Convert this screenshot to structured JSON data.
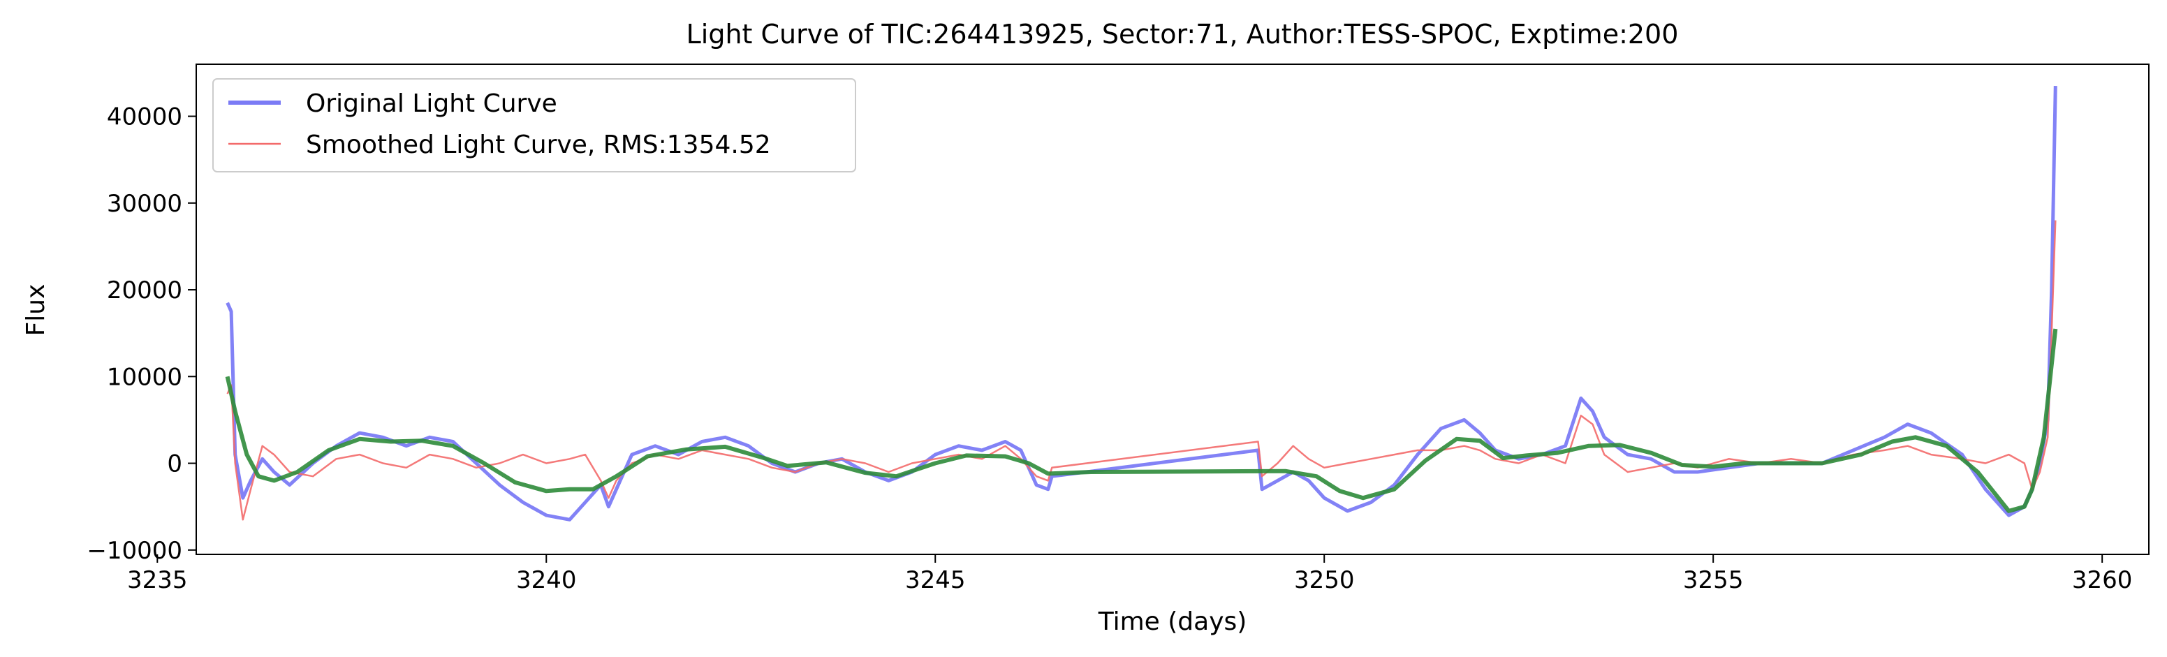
{
  "chart_data": {
    "type": "line",
    "title": "Light Curve of TIC:264413925, Sector:71, Author:TESS-SPOC, Exptime:200",
    "xlabel": "Time (days)",
    "ylabel": "Flux",
    "xlim": [
      3235.5,
      3260.6
    ],
    "ylim": [
      -10500,
      46000
    ],
    "xticks": [
      3235,
      3240,
      3245,
      3250,
      3255,
      3260
    ],
    "xtick_labels": [
      "3235",
      "3240",
      "3245",
      "3250",
      "3255",
      "3260"
    ],
    "yticks": [
      -10000,
      0,
      10000,
      20000,
      30000,
      40000
    ],
    "ytick_labels": [
      "−10000",
      "0",
      "10000",
      "20000",
      "30000",
      "40000"
    ],
    "grid": false,
    "legend_position": "top-left",
    "series": [
      {
        "name": "Original Light Curve",
        "color": "#7b7bf5",
        "points": [
          [
            3235.9,
            18500
          ],
          [
            3235.95,
            17500
          ],
          [
            3236.0,
            1000
          ],
          [
            3236.1,
            -4000
          ],
          [
            3236.2,
            -2000
          ],
          [
            3236.35,
            500
          ],
          [
            3236.5,
            -1000
          ],
          [
            3236.7,
            -2500
          ],
          [
            3237.0,
            0
          ],
          [
            3237.3,
            2000
          ],
          [
            3237.6,
            3500
          ],
          [
            3237.9,
            3000
          ],
          [
            3238.2,
            2000
          ],
          [
            3238.5,
            3000
          ],
          [
            3238.8,
            2500
          ],
          [
            3239.1,
            0
          ],
          [
            3239.4,
            -2500
          ],
          [
            3239.7,
            -4500
          ],
          [
            3240.0,
            -6000
          ],
          [
            3240.3,
            -6500
          ],
          [
            3240.5,
            -4500
          ],
          [
            3240.7,
            -2500
          ],
          [
            3240.8,
            -5000
          ],
          [
            3240.9,
            -3000
          ],
          [
            3241.1,
            1000
          ],
          [
            3241.4,
            2000
          ],
          [
            3241.7,
            1000
          ],
          [
            3242.0,
            2500
          ],
          [
            3242.3,
            3000
          ],
          [
            3242.6,
            2000
          ],
          [
            3242.9,
            0
          ],
          [
            3243.2,
            -1000
          ],
          [
            3243.5,
            0
          ],
          [
            3243.8,
            500
          ],
          [
            3244.1,
            -1000
          ],
          [
            3244.4,
            -2000
          ],
          [
            3244.7,
            -1000
          ],
          [
            3245.0,
            1000
          ],
          [
            3245.3,
            2000
          ],
          [
            3245.6,
            1500
          ],
          [
            3245.9,
            2500
          ],
          [
            3246.1,
            1500
          ],
          [
            3246.3,
            -2500
          ],
          [
            3246.45,
            -3000
          ],
          [
            3246.5,
            -1500
          ],
          [
            3249.15,
            1500
          ],
          [
            3249.2,
            -3000
          ],
          [
            3249.4,
            -2000
          ],
          [
            3249.6,
            -1000
          ],
          [
            3249.8,
            -2000
          ],
          [
            3250.0,
            -4000
          ],
          [
            3250.3,
            -5500
          ],
          [
            3250.6,
            -4500
          ],
          [
            3250.9,
            -2500
          ],
          [
            3251.2,
            1000
          ],
          [
            3251.5,
            4000
          ],
          [
            3251.8,
            5000
          ],
          [
            3252.0,
            3500
          ],
          [
            3252.2,
            1500
          ],
          [
            3252.5,
            500
          ],
          [
            3252.8,
            1000
          ],
          [
            3253.1,
            2000
          ],
          [
            3253.3,
            7500
          ],
          [
            3253.45,
            6000
          ],
          [
            3253.6,
            3000
          ],
          [
            3253.9,
            1000
          ],
          [
            3254.2,
            500
          ],
          [
            3254.5,
            -1000
          ],
          [
            3254.8,
            -1000
          ],
          [
            3255.2,
            -500
          ],
          [
            3255.6,
            0
          ],
          [
            3256.0,
            0
          ],
          [
            3256.4,
            0
          ],
          [
            3256.8,
            1500
          ],
          [
            3257.2,
            3000
          ],
          [
            3257.5,
            4500
          ],
          [
            3257.8,
            3500
          ],
          [
            3258.2,
            1000
          ],
          [
            3258.5,
            -3000
          ],
          [
            3258.8,
            -6000
          ],
          [
            3259.0,
            -5000
          ],
          [
            3259.1,
            -3000
          ],
          [
            3259.2,
            0
          ],
          [
            3259.3,
            5000
          ],
          [
            3259.35,
            20000
          ],
          [
            3259.4,
            43500
          ]
        ]
      },
      {
        "name": "Smoothed Light Curve, RMS:1354.52",
        "color": "#f36a6a",
        "points": [
          [
            3235.9,
            8000
          ],
          [
            3235.95,
            9000
          ],
          [
            3236.0,
            0
          ],
          [
            3236.1,
            -6500
          ],
          [
            3236.2,
            -3000
          ],
          [
            3236.35,
            2000
          ],
          [
            3236.5,
            1000
          ],
          [
            3236.7,
            -1000
          ],
          [
            3237.0,
            -1500
          ],
          [
            3237.3,
            500
          ],
          [
            3237.6,
            1000
          ],
          [
            3237.9,
            0
          ],
          [
            3238.2,
            -500
          ],
          [
            3238.5,
            1000
          ],
          [
            3238.8,
            500
          ],
          [
            3239.1,
            -500
          ],
          [
            3239.4,
            0
          ],
          [
            3239.7,
            1000
          ],
          [
            3240.0,
            0
          ],
          [
            3240.3,
            500
          ],
          [
            3240.5,
            1000
          ],
          [
            3240.7,
            -2000
          ],
          [
            3240.8,
            -4000
          ],
          [
            3240.9,
            -2000
          ],
          [
            3241.1,
            0
          ],
          [
            3241.4,
            1000
          ],
          [
            3241.7,
            500
          ],
          [
            3242.0,
            1500
          ],
          [
            3242.3,
            1000
          ],
          [
            3242.6,
            500
          ],
          [
            3242.9,
            -500
          ],
          [
            3243.2,
            -1000
          ],
          [
            3243.5,
            0
          ],
          [
            3243.8,
            500
          ],
          [
            3244.1,
            0
          ],
          [
            3244.4,
            -1000
          ],
          [
            3244.7,
            0
          ],
          [
            3245.0,
            500
          ],
          [
            3245.3,
            1000
          ],
          [
            3245.6,
            500
          ],
          [
            3245.9,
            2000
          ],
          [
            3246.1,
            500
          ],
          [
            3246.3,
            -1500
          ],
          [
            3246.45,
            -2000
          ],
          [
            3246.5,
            -500
          ],
          [
            3249.15,
            2500
          ],
          [
            3249.2,
            -1500
          ],
          [
            3249.4,
            0
          ],
          [
            3249.6,
            2000
          ],
          [
            3249.8,
            500
          ],
          [
            3250.0,
            -500
          ],
          [
            3250.3,
            0
          ],
          [
            3250.6,
            500
          ],
          [
            3250.9,
            1000
          ],
          [
            3251.2,
            1500
          ],
          [
            3251.5,
            1500
          ],
          [
            3251.8,
            2000
          ],
          [
            3252.0,
            1500
          ],
          [
            3252.2,
            500
          ],
          [
            3252.5,
            0
          ],
          [
            3252.8,
            1000
          ],
          [
            3253.1,
            0
          ],
          [
            3253.3,
            5500
          ],
          [
            3253.45,
            4500
          ],
          [
            3253.6,
            1000
          ],
          [
            3253.9,
            -1000
          ],
          [
            3254.2,
            -500
          ],
          [
            3254.5,
            0
          ],
          [
            3254.8,
            -500
          ],
          [
            3255.2,
            500
          ],
          [
            3255.6,
            0
          ],
          [
            3256.0,
            500
          ],
          [
            3256.4,
            0
          ],
          [
            3256.8,
            1000
          ],
          [
            3257.2,
            1500
          ],
          [
            3257.5,
            2000
          ],
          [
            3257.8,
            1000
          ],
          [
            3258.2,
            500
          ],
          [
            3258.5,
            0
          ],
          [
            3258.8,
            1000
          ],
          [
            3259.0,
            0
          ],
          [
            3259.1,
            -3000
          ],
          [
            3259.2,
            -1000
          ],
          [
            3259.3,
            3000
          ],
          [
            3259.35,
            15000
          ],
          [
            3259.4,
            28000
          ]
        ]
      },
      {
        "color": "#2e8b3a",
        "points": [
          [
            3235.9,
            10000
          ],
          [
            3236.0,
            6000
          ],
          [
            3236.15,
            1000
          ],
          [
            3236.3,
            -1500
          ],
          [
            3236.5,
            -2000
          ],
          [
            3236.8,
            -1000
          ],
          [
            3237.2,
            1500
          ],
          [
            3237.6,
            2800
          ],
          [
            3238.0,
            2500
          ],
          [
            3238.4,
            2600
          ],
          [
            3238.8,
            2000
          ],
          [
            3239.2,
            0
          ],
          [
            3239.6,
            -2200
          ],
          [
            3240.0,
            -3200
          ],
          [
            3240.3,
            -3000
          ],
          [
            3240.6,
            -3000
          ],
          [
            3240.9,
            -1500
          ],
          [
            3241.3,
            800
          ],
          [
            3241.8,
            1600
          ],
          [
            3242.3,
            1900
          ],
          [
            3242.8,
            600
          ],
          [
            3243.1,
            -300
          ],
          [
            3243.6,
            100
          ],
          [
            3244.1,
            -1100
          ],
          [
            3244.5,
            -1500
          ],
          [
            3245.0,
            0
          ],
          [
            3245.4,
            900
          ],
          [
            3245.9,
            800
          ],
          [
            3246.2,
            0
          ],
          [
            3246.45,
            -1200
          ],
          [
            3247.0,
            -1000
          ],
          [
            3249.5,
            -900
          ],
          [
            3249.9,
            -1500
          ],
          [
            3250.2,
            -3200
          ],
          [
            3250.5,
            -4000
          ],
          [
            3250.9,
            -3000
          ],
          [
            3251.3,
            300
          ],
          [
            3251.7,
            2800
          ],
          [
            3252.0,
            2600
          ],
          [
            3252.3,
            600
          ],
          [
            3252.6,
            900
          ],
          [
            3253.0,
            1200
          ],
          [
            3253.4,
            2000
          ],
          [
            3253.8,
            2100
          ],
          [
            3254.2,
            1200
          ],
          [
            3254.6,
            -200
          ],
          [
            3255.0,
            -400
          ],
          [
            3255.4,
            0
          ],
          [
            3255.9,
            0
          ],
          [
            3256.4,
            0
          ],
          [
            3256.9,
            1000
          ],
          [
            3257.3,
            2500
          ],
          [
            3257.6,
            3000
          ],
          [
            3258.0,
            2000
          ],
          [
            3258.4,
            -1000
          ],
          [
            3258.8,
            -5500
          ],
          [
            3259.0,
            -5000
          ],
          [
            3259.1,
            -3000
          ],
          [
            3259.25,
            3000
          ],
          [
            3259.4,
            15500
          ]
        ]
      }
    ]
  }
}
